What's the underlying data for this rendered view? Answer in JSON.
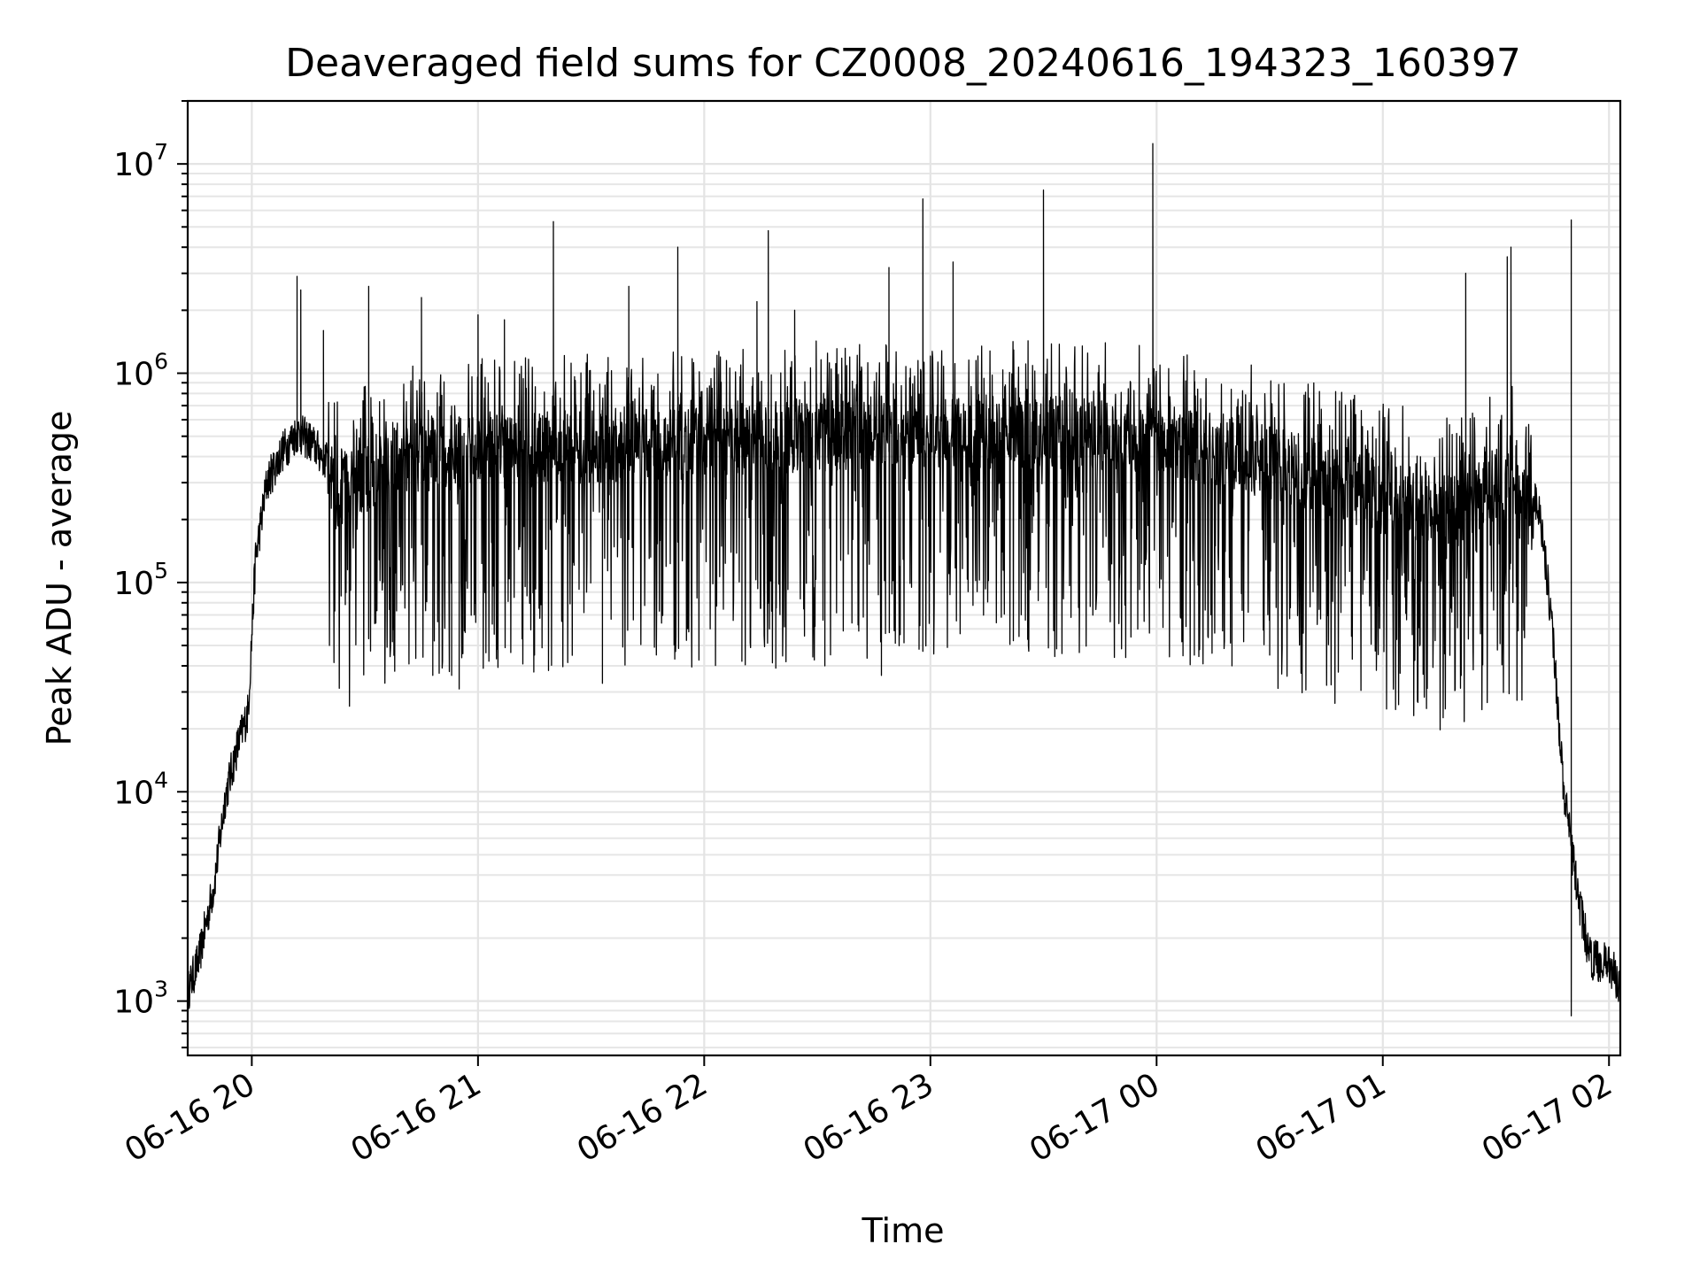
{
  "chart_data": {
    "type": "line",
    "title": "Deaveraged field sums for CZ0008_20240616_194323_160397",
    "xlabel": "Time",
    "ylabel": "Peak ADU - average",
    "x_scale": "time",
    "y_scale": "log",
    "xlim": [
      "2024-06-16 19:43",
      "2024-06-17 02:03"
    ],
    "ylim": [
      550,
      20000000
    ],
    "x_ticks": [
      {
        "value": "2024-06-16 20:00",
        "label": "06-16 20"
      },
      {
        "value": "2024-06-16 21:00",
        "label": "06-16 21"
      },
      {
        "value": "2024-06-16 22:00",
        "label": "06-16 22"
      },
      {
        "value": "2024-06-16 23:00",
        "label": "06-16 23"
      },
      {
        "value": "2024-06-17 00:00",
        "label": "06-17 00"
      },
      {
        "value": "2024-06-17 01:00",
        "label": "06-17 01"
      },
      {
        "value": "2024-06-17 02:00",
        "label": "06-17 02"
      }
    ],
    "y_ticks": [
      {
        "value": 1000,
        "base": "10",
        "exp": "3"
      },
      {
        "value": 10000,
        "base": "10",
        "exp": "4"
      },
      {
        "value": 100000,
        "base": "10",
        "exp": "5"
      },
      {
        "value": 1000000,
        "base": "10",
        "exp": "6"
      },
      {
        "value": 10000000,
        "base": "10",
        "exp": "7"
      }
    ],
    "grid": true,
    "line_color": "#000000",
    "envelope": [
      {
        "t": "2024-06-16 19:43",
        "value": 1100
      },
      {
        "t": "2024-06-16 19:46",
        "value": 1600
      },
      {
        "t": "2024-06-16 19:50",
        "value": 3600
      },
      {
        "t": "2024-06-16 19:53",
        "value": 9500
      },
      {
        "t": "2024-06-16 19:56",
        "value": 16000
      },
      {
        "t": "2024-06-16 19:59",
        "value": 24000
      },
      {
        "t": "2024-06-16 20:01",
        "value": 130000
      },
      {
        "t": "2024-06-16 20:04",
        "value": 300000
      },
      {
        "t": "2024-06-16 20:08",
        "value": 420000
      },
      {
        "t": "2024-06-16 20:12",
        "value": 520000
      },
      {
        "t": "2024-06-16 20:15",
        "value": 480000
      },
      {
        "t": "2024-06-16 20:20",
        "value": 380000
      },
      {
        "t": "2024-06-16 20:40",
        "value": 600000
      },
      {
        "t": "2024-06-16 22:00",
        "value": 700000
      },
      {
        "t": "2024-06-16 23:00",
        "value": 800000
      },
      {
        "t": "2024-06-17 00:00",
        "value": 750000
      },
      {
        "t": "2024-06-17 00:40",
        "value": 500000
      },
      {
        "t": "2024-06-17 01:00",
        "value": 380000
      },
      {
        "t": "2024-06-17 01:20",
        "value": 330000
      },
      {
        "t": "2024-06-17 01:30",
        "value": 450000
      },
      {
        "t": "2024-06-17 01:36",
        "value": 480000
      },
      {
        "t": "2024-06-17 01:42",
        "value": 200000
      },
      {
        "t": "2024-06-17 01:45",
        "value": 60000
      },
      {
        "t": "2024-06-17 01:48",
        "value": 10000
      },
      {
        "t": "2024-06-17 01:52",
        "value": 3000
      },
      {
        "t": "2024-06-17 01:55",
        "value": 1600
      },
      {
        "t": "2024-06-17 02:00",
        "value": 1500
      },
      {
        "t": "2024-06-17 02:03",
        "value": 1200
      }
    ],
    "peaks": [
      {
        "t": "2024-06-16 20:12",
        "value": 2900000
      },
      {
        "t": "2024-06-16 20:13",
        "value": 2500000
      },
      {
        "t": "2024-06-16 20:19",
        "value": 1600000
      },
      {
        "t": "2024-06-16 20:31",
        "value": 2600000
      },
      {
        "t": "2024-06-16 20:45",
        "value": 2300000
      },
      {
        "t": "2024-06-16 21:00",
        "value": 1900000
      },
      {
        "t": "2024-06-16 21:07",
        "value": 1800000
      },
      {
        "t": "2024-06-16 21:20",
        "value": 5300000
      },
      {
        "t": "2024-06-16 21:40",
        "value": 2600000
      },
      {
        "t": "2024-06-16 21:53",
        "value": 4000000
      },
      {
        "t": "2024-06-16 22:14",
        "value": 2200000
      },
      {
        "t": "2024-06-16 22:17",
        "value": 4800000
      },
      {
        "t": "2024-06-16 22:24",
        "value": 2000000
      },
      {
        "t": "2024-06-16 22:49",
        "value": 3200000
      },
      {
        "t": "2024-06-16 22:58",
        "value": 6800000
      },
      {
        "t": "2024-06-16 23:06",
        "value": 3400000
      },
      {
        "t": "2024-06-16 23:30",
        "value": 7500000
      },
      {
        "t": "2024-06-16 23:59",
        "value": 12500000
      },
      {
        "t": "2024-06-17 01:22",
        "value": 3000000
      },
      {
        "t": "2024-06-17 01:33",
        "value": 3600000
      },
      {
        "t": "2024-06-17 01:34",
        "value": 4000000
      },
      {
        "t": "2024-06-17 01:50",
        "value": 5400000
      }
    ],
    "troughs": [
      {
        "t": "2024-06-16 20:48",
        "value": 36000
      },
      {
        "t": "2024-06-16 20:53",
        "value": 36000
      },
      {
        "t": "2024-06-16 20:55",
        "value": 31000
      },
      {
        "t": "2024-06-16 21:05",
        "value": 48000
      },
      {
        "t": "2024-06-16 21:15",
        "value": 45000
      },
      {
        "t": "2024-06-16 21:33",
        "value": 33000
      },
      {
        "t": "2024-06-16 22:10",
        "value": 42000
      },
      {
        "t": "2024-06-16 22:19",
        "value": 39000
      },
      {
        "t": "2024-06-16 22:32",
        "value": 40000
      },
      {
        "t": "2024-06-16 22:47",
        "value": 36000
      },
      {
        "t": "2024-06-16 22:57",
        "value": 48000
      },
      {
        "t": "2024-06-17 00:10",
        "value": 45000
      },
      {
        "t": "2024-06-17 00:20",
        "value": 40000
      },
      {
        "t": "2024-06-17 00:30",
        "value": 45000
      },
      {
        "t": "2024-06-17 01:50",
        "value": 850
      }
    ]
  }
}
